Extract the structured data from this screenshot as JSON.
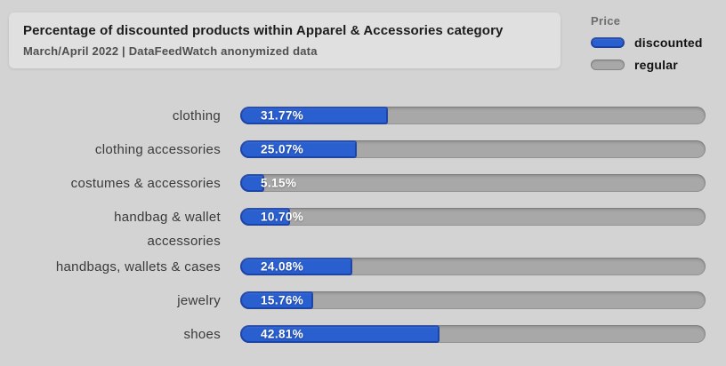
{
  "chart_data": {
    "type": "bar",
    "orientation": "horizontal",
    "stacked_percentage": true,
    "title": "Percentage of discounted products within Apparel & Accessories category",
    "subtitle": "March/April 2022 | DataFeedWatch anonymized data",
    "legend_title": "Price",
    "legend": [
      "discounted",
      "regular"
    ],
    "legend_position": "top-right",
    "categories": [
      "clothing",
      "clothing accessories",
      "costumes & accessories",
      "handbag & wallet accessories",
      "handbags, wallets & cases",
      "jewelry",
      "shoes"
    ],
    "display_labels": [
      [
        "clothing"
      ],
      [
        "clothing accessories"
      ],
      [
        "costumes & accessories"
      ],
      [
        "handbag & wallet",
        "accessories"
      ],
      [
        "handbags, wallets & cases"
      ],
      [
        "jewelry"
      ],
      [
        "shoes"
      ]
    ],
    "values": [
      31.77,
      25.07,
      5.15,
      10.7,
      24.08,
      15.76,
      42.81
    ],
    "value_labels": [
      "31.77%",
      "25.07%",
      "5.15%",
      "10.70%",
      "24.08%",
      "15.76%",
      "42.81%"
    ],
    "series": [
      {
        "name": "discounted",
        "values": [
          31.77,
          25.07,
          5.15,
          10.7,
          24.08,
          15.76,
          42.81
        ]
      },
      {
        "name": "regular",
        "values": [
          68.23,
          74.93,
          94.85,
          89.3,
          75.92,
          84.24,
          57.19
        ]
      }
    ],
    "xlim": [
      0,
      100
    ],
    "grid": false,
    "colors": {
      "discounted": "#2a5fd0",
      "regular": "#a8a8a8",
      "background": "#d3d3d3",
      "title_card": "#e0e0e0"
    }
  }
}
